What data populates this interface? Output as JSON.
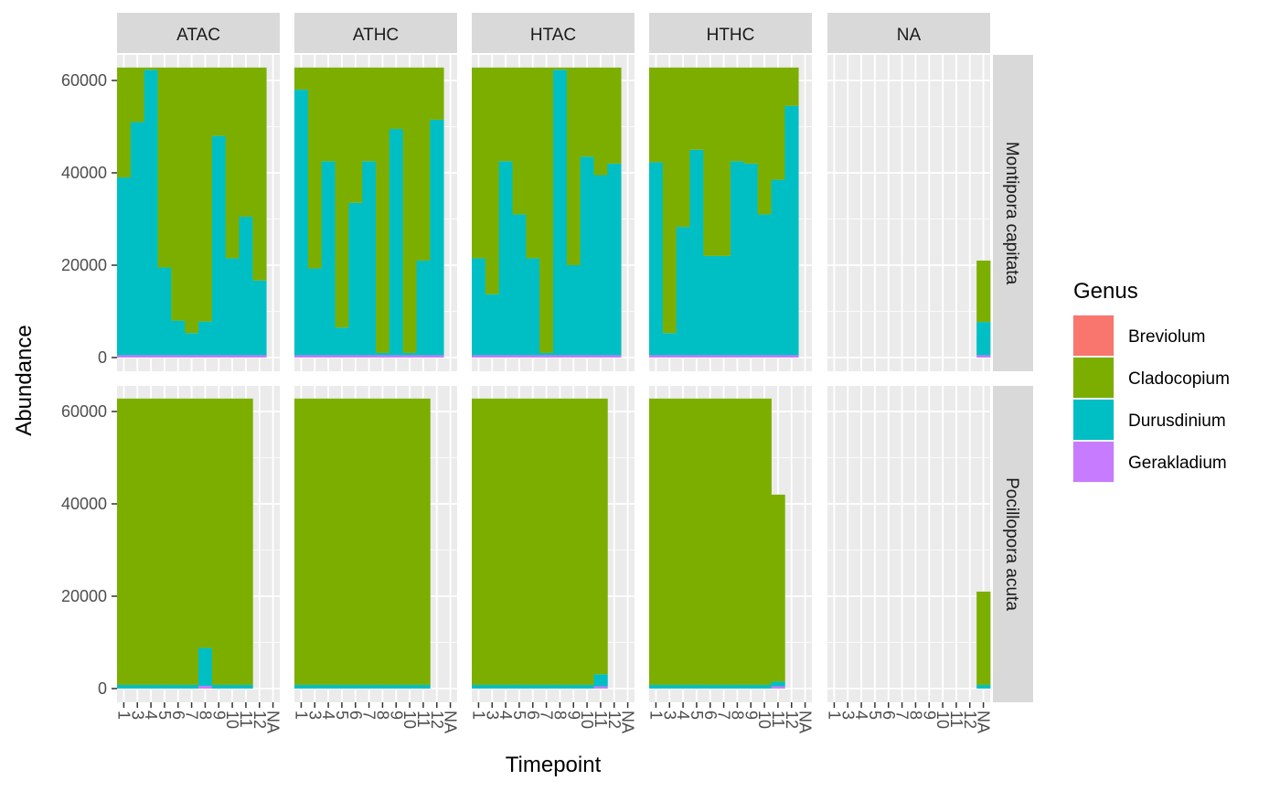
{
  "chart_data": {
    "type": "bar",
    "stacked": true,
    "faceted": true,
    "xlabel": "Timepoint",
    "ylabel": "Abundance",
    "x_categories": [
      "1",
      "3",
      "4",
      "5",
      "6",
      "7",
      "8",
      "9",
      "10",
      "11",
      "12",
      "NA"
    ],
    "ylim": [
      0,
      65000
    ],
    "y_ticks": [
      0,
      20000,
      40000,
      60000
    ],
    "y_tick_labels": [
      "0",
      "20000",
      "40000",
      "60000"
    ],
    "grid": true,
    "legend": {
      "title": "Genus",
      "placement": "right",
      "entries": [
        {
          "name": "Breviolum",
          "color": "#F8766D"
        },
        {
          "name": "Cladocopium",
          "color": "#7CAE00"
        },
        {
          "name": "Durusdinium",
          "color": "#00BFC4"
        },
        {
          "name": "Gerakladium",
          "color": "#C77CFF"
        }
      ]
    },
    "col_facets": [
      "ATAC",
      "ATHC",
      "HTAC",
      "HTHC",
      "NA"
    ],
    "row_facets": [
      "Montipora capitata",
      "Pocillopora acuta"
    ],
    "panels": [
      {
        "row": "Montipora capitata",
        "col": "ATAC",
        "bars": [
          {
            "x": "1",
            "total": 62800,
            "Durusdinium": 38500,
            "Gerakladium": 500,
            "Breviolum": 0
          },
          {
            "x": "3",
            "total": 62800,
            "Durusdinium": 50500,
            "Gerakladium": 500,
            "Breviolum": 0
          },
          {
            "x": "4",
            "total": 62800,
            "Durusdinium": 61800,
            "Gerakladium": 500,
            "Breviolum": 0
          },
          {
            "x": "5",
            "total": 62800,
            "Durusdinium": 19000,
            "Gerakladium": 500,
            "Breviolum": 0
          },
          {
            "x": "6",
            "total": 62800,
            "Durusdinium": 7500,
            "Gerakladium": 500,
            "Breviolum": 0
          },
          {
            "x": "7",
            "total": 62800,
            "Durusdinium": 4800,
            "Gerakladium": 500,
            "Breviolum": 0
          },
          {
            "x": "8",
            "total": 62800,
            "Durusdinium": 7300,
            "Gerakladium": 500,
            "Breviolum": 0
          },
          {
            "x": "9",
            "total": 62800,
            "Durusdinium": 47500,
            "Gerakladium": 500,
            "Breviolum": 0
          },
          {
            "x": "10",
            "total": 62800,
            "Durusdinium": 21000,
            "Gerakladium": 500,
            "Breviolum": 0
          },
          {
            "x": "11",
            "total": 62800,
            "Durusdinium": 30000,
            "Gerakladium": 500,
            "Breviolum": 0
          },
          {
            "x": "12",
            "total": 62800,
            "Durusdinium": 16200,
            "Gerakladium": 500,
            "Breviolum": 0
          }
        ]
      },
      {
        "row": "Montipora capitata",
        "col": "ATHC",
        "bars": [
          {
            "x": "1",
            "total": 62800,
            "Durusdinium": 57500,
            "Gerakladium": 500,
            "Breviolum": 0
          },
          {
            "x": "3",
            "total": 62800,
            "Durusdinium": 18800,
            "Gerakladium": 500,
            "Breviolum": 0
          },
          {
            "x": "4",
            "total": 62800,
            "Durusdinium": 42000,
            "Gerakladium": 500,
            "Breviolum": 0
          },
          {
            "x": "5",
            "total": 62800,
            "Durusdinium": 6000,
            "Gerakladium": 500,
            "Breviolum": 0
          },
          {
            "x": "6",
            "total": 62800,
            "Durusdinium": 33000,
            "Gerakladium": 500,
            "Breviolum": 0
          },
          {
            "x": "7",
            "total": 62800,
            "Durusdinium": 42000,
            "Gerakladium": 500,
            "Breviolum": 0
          },
          {
            "x": "8",
            "total": 62800,
            "Durusdinium": 500,
            "Gerakladium": 500,
            "Breviolum": 0
          },
          {
            "x": "9",
            "total": 62800,
            "Durusdinium": 49000,
            "Gerakladium": 500,
            "Breviolum": 0
          },
          {
            "x": "10",
            "total": 62800,
            "Durusdinium": 500,
            "Gerakladium": 500,
            "Breviolum": 0
          },
          {
            "x": "11",
            "total": 62800,
            "Durusdinium": 20500,
            "Gerakladium": 500,
            "Breviolum": 0
          },
          {
            "x": "12",
            "total": 62800,
            "Durusdinium": 51000,
            "Gerakladium": 500,
            "Breviolum": 0
          }
        ]
      },
      {
        "row": "Montipora capitata",
        "col": "HTAC",
        "bars": [
          {
            "x": "1",
            "total": 62800,
            "Durusdinium": 21000,
            "Gerakladium": 500,
            "Breviolum": 0
          },
          {
            "x": "3",
            "total": 62800,
            "Durusdinium": 13200,
            "Gerakladium": 500,
            "Breviolum": 0
          },
          {
            "x": "4",
            "total": 62800,
            "Durusdinium": 42000,
            "Gerakladium": 500,
            "Breviolum": 0
          },
          {
            "x": "5",
            "total": 62800,
            "Durusdinium": 30500,
            "Gerakladium": 500,
            "Breviolum": 0
          },
          {
            "x": "6",
            "total": 62800,
            "Durusdinium": 21000,
            "Gerakladium": 500,
            "Breviolum": 0
          },
          {
            "x": "7",
            "total": 62800,
            "Durusdinium": 500,
            "Gerakladium": 500,
            "Breviolum": 0
          },
          {
            "x": "8",
            "total": 62800,
            "Durusdinium": 61800,
            "Gerakladium": 500,
            "Breviolum": 0
          },
          {
            "x": "9",
            "total": 62800,
            "Durusdinium": 19500,
            "Gerakladium": 500,
            "Breviolum": 0
          },
          {
            "x": "10",
            "total": 62800,
            "Durusdinium": 43000,
            "Gerakladium": 500,
            "Breviolum": 0
          },
          {
            "x": "11",
            "total": 62800,
            "Durusdinium": 39000,
            "Gerakladium": 500,
            "Breviolum": 0
          },
          {
            "x": "12",
            "total": 62800,
            "Durusdinium": 41500,
            "Gerakladium": 500,
            "Breviolum": 0
          }
        ]
      },
      {
        "row": "Montipora capitata",
        "col": "HTHC",
        "bars": [
          {
            "x": "1",
            "total": 62800,
            "Durusdinium": 41800,
            "Gerakladium": 500,
            "Breviolum": 0
          },
          {
            "x": "3",
            "total": 62800,
            "Durusdinium": 4800,
            "Gerakladium": 500,
            "Breviolum": 0
          },
          {
            "x": "4",
            "total": 62800,
            "Durusdinium": 27800,
            "Gerakladium": 500,
            "Breviolum": 0
          },
          {
            "x": "5",
            "total": 62800,
            "Durusdinium": 44500,
            "Gerakladium": 500,
            "Breviolum": 0
          },
          {
            "x": "6",
            "total": 62800,
            "Durusdinium": 21500,
            "Gerakladium": 500,
            "Breviolum": 0
          },
          {
            "x": "7",
            "total": 62800,
            "Durusdinium": 21500,
            "Gerakladium": 500,
            "Breviolum": 0
          },
          {
            "x": "8",
            "total": 62800,
            "Durusdinium": 42000,
            "Gerakladium": 500,
            "Breviolum": 0
          },
          {
            "x": "9",
            "total": 62800,
            "Durusdinium": 41500,
            "Gerakladium": 500,
            "Breviolum": 0
          },
          {
            "x": "10",
            "total": 62800,
            "Durusdinium": 30500,
            "Gerakladium": 500,
            "Breviolum": 0
          },
          {
            "x": "11",
            "total": 62800,
            "Durusdinium": 38000,
            "Gerakladium": 500,
            "Breviolum": 0
          },
          {
            "x": "12",
            "total": 62800,
            "Durusdinium": 54000,
            "Gerakladium": 500,
            "Breviolum": 0
          }
        ]
      },
      {
        "row": "Montipora capitata",
        "col": "NA",
        "bars": [
          {
            "x": "NA",
            "total": 21000,
            "Durusdinium": 7200,
            "Gerakladium": 500,
            "Breviolum": 0
          }
        ]
      },
      {
        "row": "Pocillopora acuta",
        "col": "ATAC",
        "bars": [
          {
            "x": "1",
            "total": 62800,
            "Durusdinium": 800,
            "Gerakladium": 0,
            "Breviolum": 0
          },
          {
            "x": "3",
            "total": 62800,
            "Durusdinium": 800,
            "Gerakladium": 0,
            "Breviolum": 0
          },
          {
            "x": "4",
            "total": 62800,
            "Durusdinium": 800,
            "Gerakladium": 0,
            "Breviolum": 0
          },
          {
            "x": "5",
            "total": 62800,
            "Durusdinium": 800,
            "Gerakladium": 0,
            "Breviolum": 0
          },
          {
            "x": "6",
            "total": 62800,
            "Durusdinium": 800,
            "Gerakladium": 0,
            "Breviolum": 0
          },
          {
            "x": "7",
            "total": 62800,
            "Durusdinium": 800,
            "Gerakladium": 0,
            "Breviolum": 0
          },
          {
            "x": "8",
            "total": 62800,
            "Durusdinium": 8200,
            "Gerakladium": 600,
            "Breviolum": 0
          },
          {
            "x": "9",
            "total": 62800,
            "Durusdinium": 800,
            "Gerakladium": 0,
            "Breviolum": 0
          },
          {
            "x": "10",
            "total": 62800,
            "Durusdinium": 800,
            "Gerakladium": 0,
            "Breviolum": 0
          },
          {
            "x": "11",
            "total": 62800,
            "Durusdinium": 800,
            "Gerakladium": 0,
            "Breviolum": 0
          }
        ]
      },
      {
        "row": "Pocillopora acuta",
        "col": "ATHC",
        "bars": [
          {
            "x": "1",
            "total": 62800,
            "Durusdinium": 800,
            "Gerakladium": 0,
            "Breviolum": 0
          },
          {
            "x": "3",
            "total": 62800,
            "Durusdinium": 800,
            "Gerakladium": 0,
            "Breviolum": 0
          },
          {
            "x": "4",
            "total": 62800,
            "Durusdinium": 800,
            "Gerakladium": 0,
            "Breviolum": 0
          },
          {
            "x": "5",
            "total": 62800,
            "Durusdinium": 800,
            "Gerakladium": 0,
            "Breviolum": 0
          },
          {
            "x": "6",
            "total": 62800,
            "Durusdinium": 800,
            "Gerakladium": 0,
            "Breviolum": 0
          },
          {
            "x": "7",
            "total": 62800,
            "Durusdinium": 800,
            "Gerakladium": 0,
            "Breviolum": 0
          },
          {
            "x": "8",
            "total": 62800,
            "Durusdinium": 800,
            "Gerakladium": 0,
            "Breviolum": 0
          },
          {
            "x": "9",
            "total": 62800,
            "Durusdinium": 800,
            "Gerakladium": 0,
            "Breviolum": 0
          },
          {
            "x": "10",
            "total": 62800,
            "Durusdinium": 800,
            "Gerakladium": 0,
            "Breviolum": 0
          },
          {
            "x": "11",
            "total": 62800,
            "Durusdinium": 800,
            "Gerakladium": 0,
            "Breviolum": 0
          }
        ]
      },
      {
        "row": "Pocillopora acuta",
        "col": "HTAC",
        "bars": [
          {
            "x": "1",
            "total": 62800,
            "Durusdinium": 800,
            "Gerakladium": 0,
            "Breviolum": 0
          },
          {
            "x": "3",
            "total": 62800,
            "Durusdinium": 800,
            "Gerakladium": 0,
            "Breviolum": 0
          },
          {
            "x": "4",
            "total": 62800,
            "Durusdinium": 800,
            "Gerakladium": 0,
            "Breviolum": 0
          },
          {
            "x": "5",
            "total": 62800,
            "Durusdinium": 800,
            "Gerakladium": 0,
            "Breviolum": 0
          },
          {
            "x": "6",
            "total": 62800,
            "Durusdinium": 800,
            "Gerakladium": 0,
            "Breviolum": 0
          },
          {
            "x": "7",
            "total": 62800,
            "Durusdinium": 800,
            "Gerakladium": 0,
            "Breviolum": 0
          },
          {
            "x": "8",
            "total": 62800,
            "Durusdinium": 800,
            "Gerakladium": 0,
            "Breviolum": 0
          },
          {
            "x": "9",
            "total": 62800,
            "Durusdinium": 800,
            "Gerakladium": 0,
            "Breviolum": 0
          },
          {
            "x": "10",
            "total": 62800,
            "Durusdinium": 800,
            "Gerakladium": 0,
            "Breviolum": 0
          },
          {
            "x": "11",
            "total": 62800,
            "Durusdinium": 2600,
            "Gerakladium": 500,
            "Breviolum": 0
          }
        ]
      },
      {
        "row": "Pocillopora acuta",
        "col": "HTHC",
        "bars": [
          {
            "x": "1",
            "total": 62800,
            "Durusdinium": 800,
            "Gerakladium": 0,
            "Breviolum": 0
          },
          {
            "x": "3",
            "total": 62800,
            "Durusdinium": 800,
            "Gerakladium": 0,
            "Breviolum": 0
          },
          {
            "x": "4",
            "total": 62800,
            "Durusdinium": 800,
            "Gerakladium": 0,
            "Breviolum": 0
          },
          {
            "x": "5",
            "total": 62800,
            "Durusdinium": 800,
            "Gerakladium": 0,
            "Breviolum": 0
          },
          {
            "x": "6",
            "total": 62800,
            "Durusdinium": 800,
            "Gerakladium": 0,
            "Breviolum": 0
          },
          {
            "x": "7",
            "total": 62800,
            "Durusdinium": 800,
            "Gerakladium": 0,
            "Breviolum": 0
          },
          {
            "x": "8",
            "total": 62800,
            "Durusdinium": 800,
            "Gerakladium": 0,
            "Breviolum": 0
          },
          {
            "x": "9",
            "total": 62800,
            "Durusdinium": 800,
            "Gerakladium": 0,
            "Breviolum": 0
          },
          {
            "x": "10",
            "total": 62800,
            "Durusdinium": 800,
            "Gerakladium": 0,
            "Breviolum": 0
          },
          {
            "x": "11",
            "total": 42000,
            "Durusdinium": 1000,
            "Gerakladium": 500,
            "Breviolum": 0
          }
        ]
      },
      {
        "row": "Pocillopora acuta",
        "col": "NA",
        "bars": [
          {
            "x": "NA",
            "total": 21000,
            "Durusdinium": 800,
            "Gerakladium": 0,
            "Breviolum": 0
          }
        ]
      }
    ]
  }
}
